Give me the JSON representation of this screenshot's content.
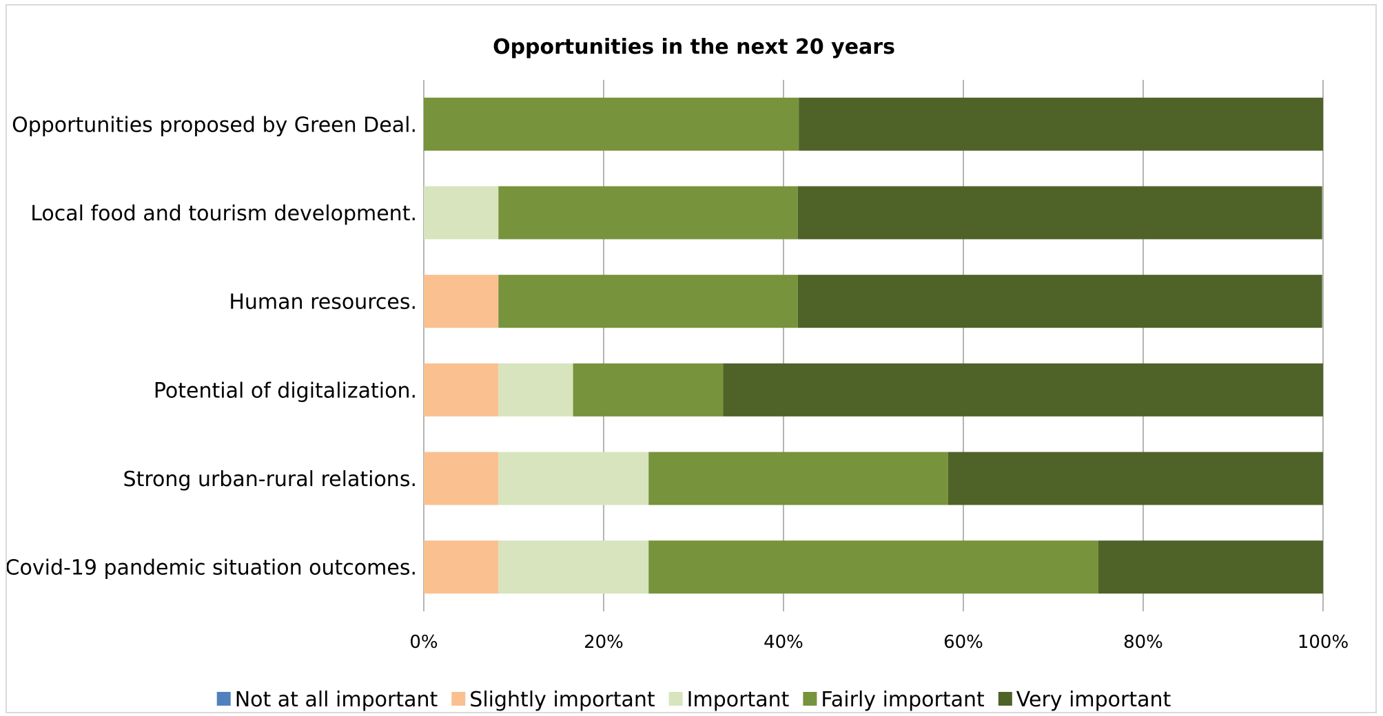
{
  "chart_data": {
    "type": "bar",
    "orientation": "horizontal",
    "stacked": "percent",
    "title": "Opportunities in the next 20 years",
    "xlabel": "",
    "ylabel": "",
    "xlim": [
      0,
      100
    ],
    "x_ticks": [
      "0%",
      "20%",
      "40%",
      "60%",
      "80%",
      "100%"
    ],
    "categories": [
      "Opportunities proposed by Green Deal.",
      "Local food and tourism development.",
      "Human resources.",
      "Potential of digitalization.",
      "Strong urban-rural relations.",
      "Covid-19 pandemic situation outcomes."
    ],
    "series": [
      {
        "name": "Not at all important",
        "color": "#4f81bd",
        "values": [
          0,
          0,
          0,
          0,
          0,
          0
        ]
      },
      {
        "name": "Slightly important",
        "color": "#fac090",
        "values": [
          0,
          0,
          8.3,
          8.3,
          8.3,
          8.3
        ]
      },
      {
        "name": "Important",
        "color": "#d7e4bd",
        "values": [
          0,
          8.3,
          0,
          8.3,
          16.7,
          16.7
        ]
      },
      {
        "name": "Fairly important",
        "color": "#77933c",
        "values": [
          41.7,
          33.3,
          33.3,
          16.7,
          33.3,
          50.0
        ]
      },
      {
        "name": "Very important",
        "color": "#4f6228",
        "values": [
          58.3,
          58.3,
          58.3,
          66.7,
          41.7,
          25.0
        ]
      }
    ],
    "grid": true,
    "legend_position": "bottom"
  }
}
